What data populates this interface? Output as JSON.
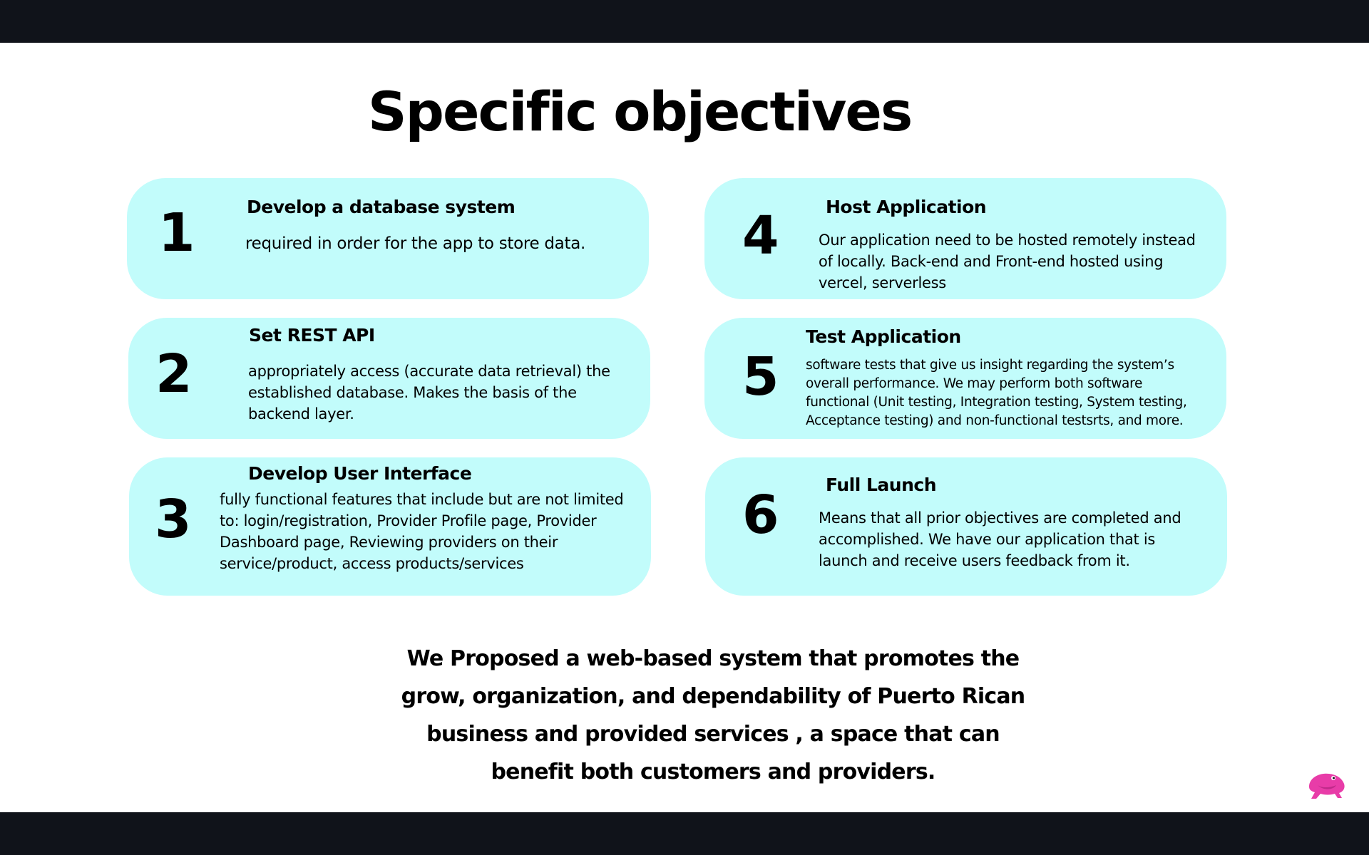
{
  "slide": {
    "title": "Specific objectives",
    "objectives": [
      {
        "number": "1",
        "title": "Develop a database system",
        "description": "required in order for the app to store data."
      },
      {
        "number": "2",
        "title": "Set  REST API",
        "description": "appropriately access (accurate data retrieval) the established database.  Makes the basis of the backend layer."
      },
      {
        "number": "3",
        "title": "Develop User Interface",
        "description": "fully functional features that include but are not limited to: login/registration, Provider Profile page, Provider Dashboard page, Reviewing providers on their service/product, access products/services"
      },
      {
        "number": "4",
        "title": "Host Application",
        "description": " Our application need to be hosted remotely instead of locally.  Back-end and Front-end hosted using vercel, serverless"
      },
      {
        "number": "5",
        "title": "Test Application",
        "description": " software tests that give us insight regarding the system’s overall performance. We may perform both software functional (Unit testing, Integration testing, System testing, Acceptance testing) and non-functional testsrts, and more."
      },
      {
        "number": "6",
        "title": "Full Launch",
        "description": "Means that all prior objectives are completed and accomplished. We have our application that is launch and receive users feedback from it."
      }
    ],
    "summary": "We Proposed a web-based system that promotes the grow, organization, and dependability of Puerto Rican business and provided services , a space that can benefit both customers and providers.",
    "card_color": "#c2fcfb",
    "logo_color": "#e83ca8"
  }
}
